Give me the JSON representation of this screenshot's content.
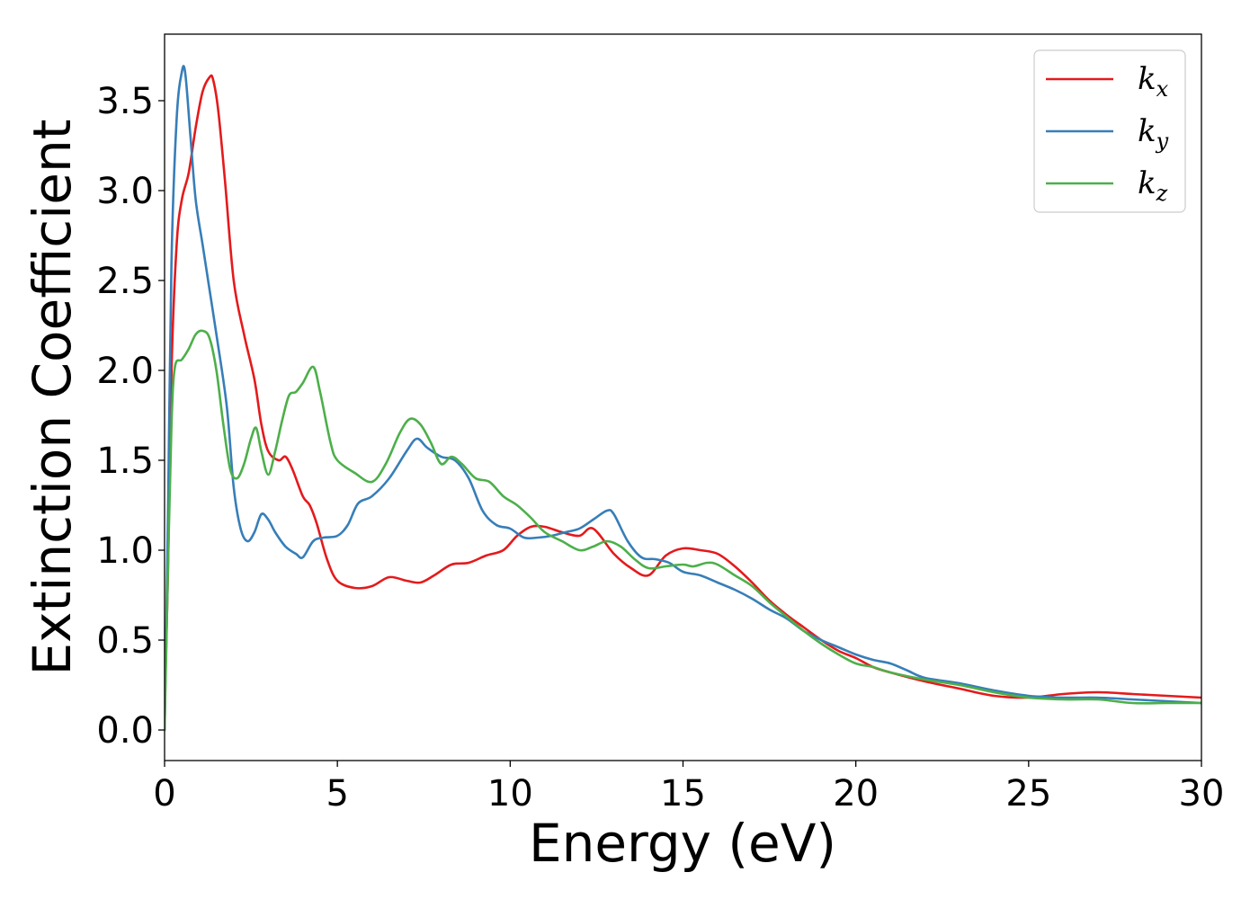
{
  "chart_data": {
    "type": "line",
    "xlabel": "Energy (eV)",
    "ylabel": "Extinction Coefficient",
    "xlim": [
      0,
      30
    ],
    "ylim": [
      -0.17,
      3.87
    ],
    "xticks": [
      0,
      5,
      10,
      15,
      20,
      25,
      30
    ],
    "xtick_labels": [
      "0",
      "5",
      "10",
      "15",
      "20",
      "25",
      "30"
    ],
    "yticks": [
      0.0,
      0.5,
      1.0,
      1.5,
      2.0,
      2.5,
      3.0,
      3.5
    ],
    "ytick_labels": [
      "0.0",
      "0.5",
      "1.0",
      "1.5",
      "2.0",
      "2.5",
      "3.0",
      "3.5"
    ],
    "grid": false,
    "legend_position": "top-right",
    "series": [
      {
        "name": "k_x",
        "label_main": "k",
        "label_sub": "x",
        "color": "#e41a1c",
        "x": [
          0,
          0.1,
          0.2,
          0.35,
          0.5,
          0.7,
          0.9,
          1.1,
          1.3,
          1.4,
          1.55,
          1.75,
          2.0,
          2.3,
          2.6,
          2.8,
          3.0,
          3.3,
          3.5,
          3.7,
          4.0,
          4.2,
          4.4,
          4.7,
          5.0,
          5.5,
          6.0,
          6.5,
          7.0,
          7.4,
          7.8,
          8.3,
          8.8,
          9.3,
          9.8,
          10.2,
          10.6,
          11.0,
          11.5,
          12.0,
          12.4,
          13.0,
          13.5,
          14.0,
          14.5,
          15.0,
          15.5,
          16.0,
          16.5,
          17.0,
          17.5,
          18.0,
          18.5,
          19.0,
          19.5,
          20.0,
          20.5,
          21.0,
          22.0,
          23.0,
          24.0,
          25.0,
          26.0,
          27.0,
          28.0,
          29.0,
          30.0
        ],
        "values": [
          0.1,
          0.9,
          2.0,
          2.7,
          2.95,
          3.1,
          3.35,
          3.55,
          3.63,
          3.62,
          3.45,
          3.05,
          2.5,
          2.2,
          1.95,
          1.7,
          1.55,
          1.5,
          1.52,
          1.45,
          1.3,
          1.25,
          1.15,
          0.95,
          0.83,
          0.79,
          0.8,
          0.85,
          0.83,
          0.82,
          0.86,
          0.92,
          0.93,
          0.97,
          1.0,
          1.08,
          1.13,
          1.13,
          1.1,
          1.08,
          1.12,
          0.98,
          0.9,
          0.86,
          0.97,
          1.01,
          1.0,
          0.98,
          0.91,
          0.82,
          0.72,
          0.64,
          0.57,
          0.5,
          0.44,
          0.4,
          0.35,
          0.32,
          0.27,
          0.23,
          0.19,
          0.18,
          0.2,
          0.21,
          0.2,
          0.19,
          0.18
        ]
      },
      {
        "name": "k_y",
        "label_main": "k",
        "label_sub": "y",
        "color": "#377eb8",
        "x": [
          0,
          0.1,
          0.2,
          0.35,
          0.5,
          0.6,
          0.75,
          0.9,
          1.1,
          1.3,
          1.5,
          1.8,
          2.0,
          2.2,
          2.4,
          2.6,
          2.8,
          3.0,
          3.2,
          3.5,
          3.8,
          4.0,
          4.3,
          4.6,
          5.0,
          5.3,
          5.6,
          6.0,
          6.5,
          7.0,
          7.3,
          7.6,
          8.0,
          8.4,
          8.8,
          9.2,
          9.6,
          10.0,
          10.4,
          10.8,
          11.2,
          11.6,
          12.0,
          12.4,
          12.8,
          13.0,
          13.4,
          13.8,
          14.2,
          14.6,
          15.0,
          15.5,
          16.0,
          16.5,
          17.0,
          17.5,
          18.0,
          18.5,
          19.0,
          19.5,
          20.0,
          20.5,
          21.0,
          21.5,
          22.0,
          23.0,
          24.0,
          25.0,
          26.0,
          27.0,
          28.0,
          29.0,
          30.0
        ],
        "values": [
          0.0,
          1.2,
          2.6,
          3.4,
          3.66,
          3.65,
          3.3,
          2.95,
          2.7,
          2.45,
          2.2,
          1.8,
          1.35,
          1.12,
          1.05,
          1.1,
          1.2,
          1.17,
          1.1,
          1.02,
          0.98,
          0.96,
          1.05,
          1.07,
          1.08,
          1.14,
          1.26,
          1.3,
          1.4,
          1.55,
          1.62,
          1.57,
          1.52,
          1.5,
          1.4,
          1.22,
          1.14,
          1.12,
          1.07,
          1.07,
          1.08,
          1.1,
          1.12,
          1.17,
          1.22,
          1.2,
          1.05,
          0.96,
          0.95,
          0.93,
          0.88,
          0.86,
          0.82,
          0.78,
          0.73,
          0.67,
          0.62,
          0.55,
          0.5,
          0.46,
          0.42,
          0.39,
          0.37,
          0.33,
          0.29,
          0.26,
          0.22,
          0.19,
          0.18,
          0.18,
          0.17,
          0.16,
          0.15
        ]
      },
      {
        "name": "k_z",
        "label_main": "k",
        "label_sub": "z",
        "color": "#4daf4a",
        "x": [
          0,
          0.1,
          0.2,
          0.3,
          0.5,
          0.7,
          0.9,
          1.1,
          1.3,
          1.5,
          1.7,
          1.9,
          2.1,
          2.3,
          2.5,
          2.65,
          2.8,
          3.0,
          3.2,
          3.4,
          3.6,
          3.8,
          4.0,
          4.3,
          4.5,
          4.8,
          5.0,
          5.5,
          6.0,
          6.4,
          6.8,
          7.1,
          7.4,
          7.7,
          8.0,
          8.3,
          8.6,
          9.0,
          9.4,
          9.8,
          10.2,
          10.6,
          11.0,
          11.5,
          12.0,
          12.4,
          12.8,
          13.2,
          13.6,
          14.0,
          14.5,
          15.0,
          15.3,
          15.7,
          16.0,
          16.5,
          17.0,
          17.5,
          18.0,
          18.5,
          19.0,
          19.5,
          20.0,
          20.5,
          21.0,
          22.0,
          23.0,
          24.0,
          25.0,
          26.0,
          27.0,
          28.0,
          29.0,
          30.0
        ],
        "values": [
          0.0,
          0.9,
          1.7,
          2.02,
          2.06,
          2.12,
          2.2,
          2.22,
          2.18,
          2.0,
          1.7,
          1.45,
          1.4,
          1.48,
          1.62,
          1.68,
          1.55,
          1.42,
          1.55,
          1.72,
          1.86,
          1.88,
          1.93,
          2.02,
          1.88,
          1.6,
          1.5,
          1.43,
          1.38,
          1.48,
          1.65,
          1.73,
          1.7,
          1.6,
          1.48,
          1.52,
          1.48,
          1.4,
          1.38,
          1.3,
          1.25,
          1.18,
          1.1,
          1.05,
          1.0,
          1.02,
          1.05,
          1.02,
          0.95,
          0.9,
          0.91,
          0.92,
          0.91,
          0.93,
          0.92,
          0.86,
          0.8,
          0.71,
          0.63,
          0.55,
          0.48,
          0.42,
          0.37,
          0.35,
          0.32,
          0.28,
          0.25,
          0.21,
          0.18,
          0.17,
          0.17,
          0.15,
          0.15,
          0.15
        ]
      }
    ]
  }
}
